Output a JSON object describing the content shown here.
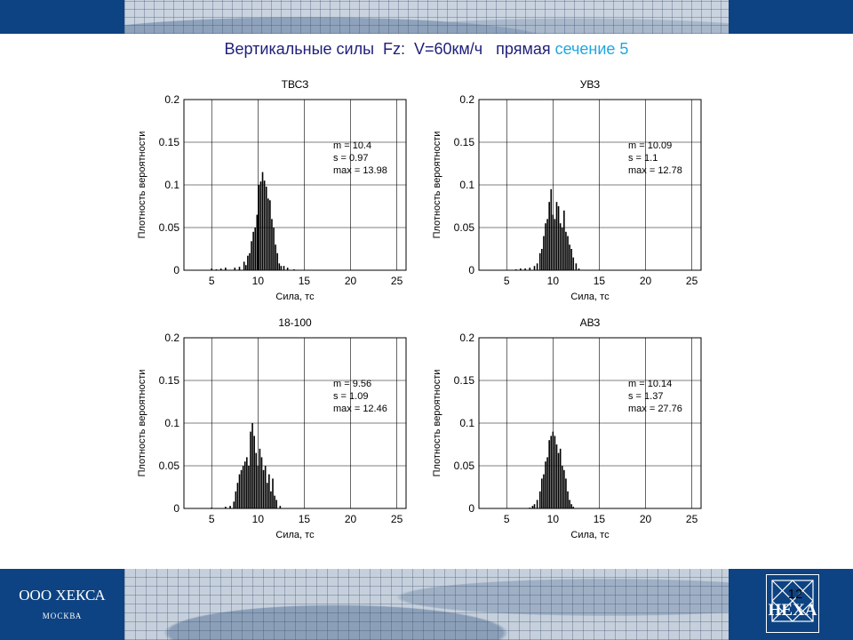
{
  "slide": {
    "title_main": "Вертикальные силы  Fz:  V=60км/ч   прямая ",
    "title_accent": "сечение 5",
    "accent_color": "#1fa6e0",
    "page_number": "12"
  },
  "footer": {
    "company": "ООО ХЕКСА",
    "city": "МОСКВА",
    "logo_text": "HEXA",
    "banner_color": "#0d4382"
  },
  "chart_data": [
    {
      "type": "bar",
      "title": "ТВСЗ",
      "xlabel": "Сила, тс",
      "ylabel": "Плотность вероятности",
      "xlim": [
        2,
        26
      ],
      "ylim": [
        0,
        0.2
      ],
      "xticks": [
        "5",
        "10",
        "15",
        "20",
        "25"
      ],
      "yticks": [
        "0",
        "0.05",
        "0.1",
        "0.15",
        "0.2"
      ],
      "grid": true,
      "stats": [
        "m = 10.4",
        "s  = 0.97",
        "max  = 13.98"
      ],
      "x": [
        5.0,
        5.5,
        6.0,
        6.5,
        7.5,
        8.0,
        8.5,
        8.7,
        8.9,
        9.1,
        9.3,
        9.5,
        9.7,
        9.9,
        10.1,
        10.3,
        10.5,
        10.7,
        10.9,
        11.1,
        11.3,
        11.5,
        11.7,
        11.9,
        12.1,
        12.3,
        12.5,
        12.8,
        13.2,
        13.9
      ],
      "y": [
        0.002,
        0.001,
        0.002,
        0.003,
        0.003,
        0.004,
        0.01,
        0.006,
        0.017,
        0.02,
        0.034,
        0.045,
        0.05,
        0.065,
        0.1,
        0.104,
        0.115,
        0.105,
        0.098,
        0.084,
        0.082,
        0.06,
        0.05,
        0.03,
        0.02,
        0.008,
        0.005,
        0.005,
        0.003,
        0.001
      ]
    },
    {
      "type": "bar",
      "title": "УВЗ",
      "xlabel": "Сила, тс",
      "ylabel": "Плотность вероятности",
      "xlim": [
        2,
        26
      ],
      "ylim": [
        0,
        0.2
      ],
      "xticks": [
        "5",
        "10",
        "15",
        "20",
        "25"
      ],
      "yticks": [
        "0",
        "0.05",
        "0.1",
        "0.15",
        "0.2"
      ],
      "grid": true,
      "stats": [
        "m = 10.09",
        "s  = 1.1",
        "max  = 12.78"
      ],
      "x": [
        6.0,
        6.5,
        7.0,
        7.5,
        8.0,
        8.3,
        8.6,
        8.8,
        9.0,
        9.2,
        9.4,
        9.6,
        9.8,
        10.0,
        10.2,
        10.4,
        10.6,
        10.8,
        11.0,
        11.2,
        11.4,
        11.6,
        11.8,
        12.0,
        12.2,
        12.5,
        12.8
      ],
      "y": [
        0.001,
        0.002,
        0.002,
        0.003,
        0.005,
        0.008,
        0.02,
        0.025,
        0.04,
        0.055,
        0.06,
        0.08,
        0.095,
        0.065,
        0.06,
        0.08,
        0.075,
        0.055,
        0.05,
        0.07,
        0.045,
        0.04,
        0.03,
        0.025,
        0.015,
        0.008,
        0.002
      ]
    },
    {
      "type": "bar",
      "title": "18-100",
      "xlabel": "Сила, тс",
      "ylabel": "Плотность вероятности",
      "xlim": [
        2,
        26
      ],
      "ylim": [
        0,
        0.2
      ],
      "xticks": [
        "5",
        "10",
        "15",
        "20",
        "25"
      ],
      "yticks": [
        "0",
        "0.05",
        "0.1",
        "0.15",
        "0.2"
      ],
      "grid": true,
      "stats": [
        "m = 9.56",
        "s  = 1.09",
        "max  = 12.46"
      ],
      "x": [
        5.0,
        6.5,
        7.0,
        7.4,
        7.6,
        7.8,
        8.0,
        8.2,
        8.4,
        8.6,
        8.8,
        9.0,
        9.2,
        9.4,
        9.6,
        9.8,
        10.0,
        10.2,
        10.4,
        10.6,
        10.8,
        11.0,
        11.2,
        11.4,
        11.6,
        11.8,
        12.0,
        12.4
      ],
      "y": [
        0.001,
        0.002,
        0.003,
        0.008,
        0.02,
        0.03,
        0.04,
        0.045,
        0.05,
        0.055,
        0.06,
        0.05,
        0.09,
        0.1,
        0.085,
        0.065,
        0.05,
        0.07,
        0.06,
        0.045,
        0.05,
        0.03,
        0.04,
        0.02,
        0.035,
        0.015,
        0.01,
        0.003
      ]
    },
    {
      "type": "bar",
      "title": "АВЗ",
      "xlabel": "Сила, тс",
      "ylabel": "Плотность вероятности",
      "xlim": [
        2,
        26
      ],
      "ylim": [
        0,
        0.2
      ],
      "xticks": [
        "5",
        "10",
        "15",
        "20",
        "25"
      ],
      "yticks": [
        "0",
        "0.05",
        "0.1",
        "0.15",
        "0.2"
      ],
      "grid": true,
      "stats": [
        "m = 10.14",
        "s  = 1.37",
        "max  = 27.76"
      ],
      "x": [
        7.5,
        7.8,
        8.0,
        8.3,
        8.6,
        8.8,
        9.0,
        9.2,
        9.4,
        9.6,
        9.8,
        10.0,
        10.2,
        10.4,
        10.6,
        10.8,
        11.0,
        11.2,
        11.4,
        11.6,
        11.8,
        12.0,
        12.2
      ],
      "y": [
        0.001,
        0.003,
        0.005,
        0.01,
        0.02,
        0.035,
        0.04,
        0.055,
        0.06,
        0.08,
        0.085,
        0.09,
        0.085,
        0.075,
        0.065,
        0.07,
        0.05,
        0.045,
        0.035,
        0.02,
        0.01,
        0.005,
        0.002
      ]
    }
  ]
}
